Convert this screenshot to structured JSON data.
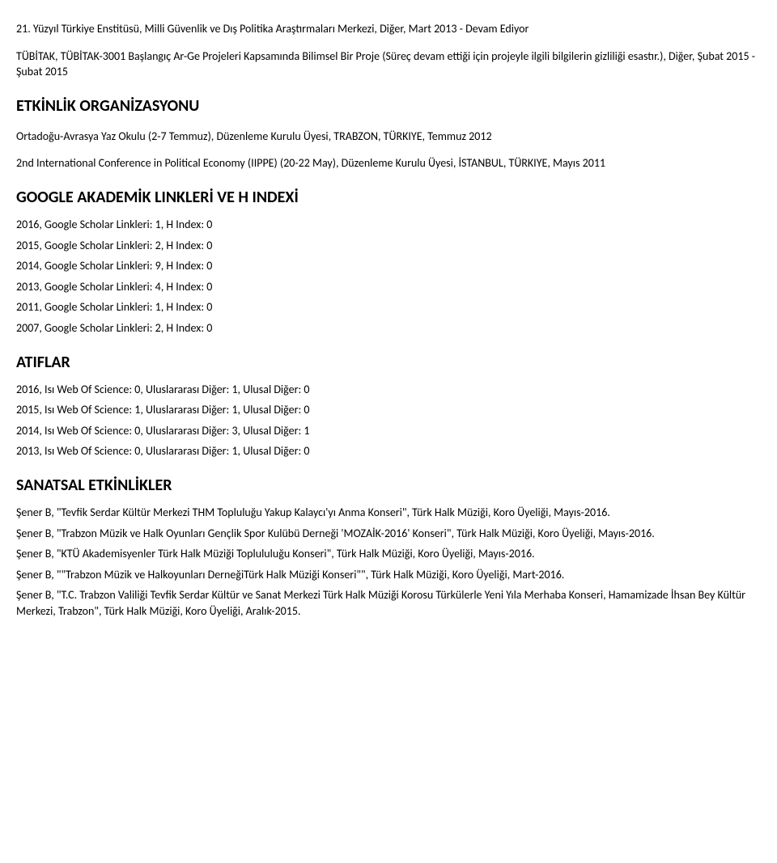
{
  "p1": "21. Yüzyıl Türkiye Enstitüsü, Milli Güvenlik ve Dış Politika Araştırmaları Merkezi, Diğer, Mart 2013 - Devam Ediyor",
  "p2": "TÜBİTAK, TÜBİTAK-3001 Başlangıç Ar-Ge Projeleri Kapsamında Bilimsel Bir Proje (Süreç devam ettiği için projeyle ilgili bilgilerin gizliliği esastır.), Diğer, Şubat 2015 - Şubat 2015",
  "h_org": "ETKİNLİK ORGANİZASYONU",
  "org1": "Ortadoğu-Avrasya Yaz Okulu (2-7 Temmuz), Düzenleme Kurulu Üyesi, TRABZON, TÜRKIYE, Temmuz 2012",
  "org2": "2nd International Conference in Political Economy (IIPPE) (20-22 May), Düzenleme Kurulu Üyesi, İSTANBUL, TÜRKIYE, Mayıs 2011",
  "h_google": "GOOGLE AKADEMİK LINKLERİ VE H INDEXİ",
  "g1": "2016, Google Scholar Linkleri: 1, H Index: 0",
  "g2": "2015, Google Scholar Linkleri: 2, H Index: 0",
  "g3": "2014, Google Scholar Linkleri: 9, H Index: 0",
  "g4": "2013, Google Scholar Linkleri: 4, H Index: 0",
  "g5": "2011, Google Scholar Linkleri: 1, H Index: 0",
  "g6": "2007, Google Scholar Linkleri: 2, H Index: 0",
  "h_atif": "ATIFLAR",
  "a1": "2016, Isı Web Of Science: 0, Uluslararası Diğer: 1, Ulusal Diğer: 0",
  "a2": "2015, Isı Web Of Science: 1, Uluslararası Diğer: 1, Ulusal Diğer: 0",
  "a3": "2014, Isı Web Of Science: 0, Uluslararası Diğer: 3, Ulusal Diğer: 1",
  "a4": "2013, Isı Web Of Science: 0, Uluslararası Diğer: 1, Ulusal Diğer: 0",
  "h_sanat": "SANATSAL ETKİNLİKLER",
  "s1": "Şener B, \"Tevfik Serdar Kültür Merkezi THM Topluluğu Yakup Kalaycı'yı Anma Konseri\", Türk Halk Müziği, Koro Üyeliği, Mayıs-2016.",
  "s2": "Şener B, \"Trabzon Müzik ve Halk Oyunları Gençlik Spor Kulübü Derneği 'MOZAİK-2016' Konseri\", Türk Halk Müziği, Koro Üyeliği, Mayıs-2016.",
  "s3": "Şener B, \"KTÜ Akademisyenler Türk Halk Müziği Toplululuğu Konseri\", Türk Halk Müziği, Koro Üyeliği, Mayıs-2016.",
  "s4": "Şener B, \"\"Trabzon Müzik ve Halkoyunları DerneğiTürk Halk Müziği Konseri\"\", Türk Halk Müziği, Koro Üyeliği, Mart-2016.",
  "s5": "Şener B, \"T.C. Trabzon Valiliği Tevfik Serdar Kültür ve Sanat Merkezi Türk Halk Müziği Korosu Türkülerle Yeni Yıla Merhaba Konseri, Hamamizade İhsan Bey Kültür Merkezi, Trabzon\", Türk Halk Müziği, Koro Üyeliği, Aralık-2015."
}
